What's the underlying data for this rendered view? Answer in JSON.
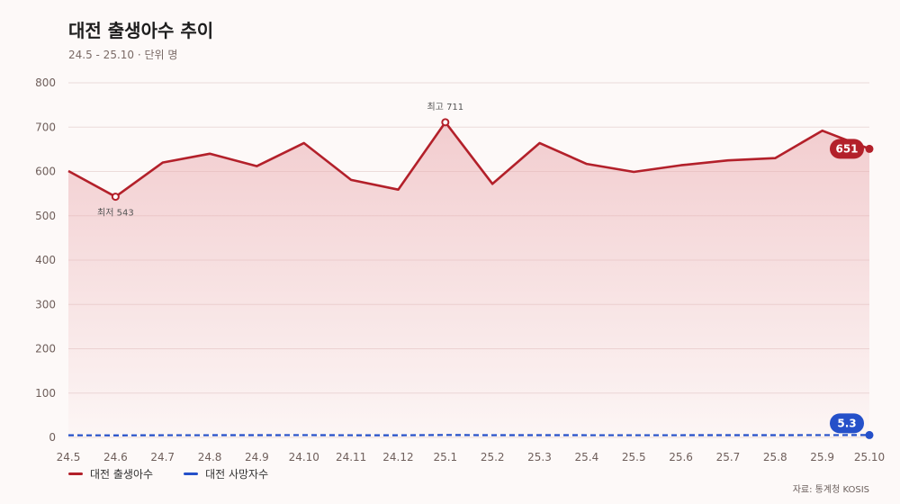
{
  "title": "대전 출생아수 추이",
  "subtitle": "24.5 - 25.10 · 단위 명",
  "source": "자료: 통계청 KOSIS",
  "chart_data": {
    "type": "line",
    "categories": [
      "24.5",
      "24.6",
      "24.7",
      "24.8",
      "24.9",
      "24.10",
      "24.11",
      "24.12",
      "25.1",
      "25.2",
      "25.3",
      "25.4",
      "25.5",
      "25.6",
      "25.7",
      "25.8",
      "25.9",
      "25.10"
    ],
    "ylim": [
      0,
      800
    ],
    "yticks": [
      0,
      100,
      200,
      300,
      400,
      500,
      600,
      700,
      800
    ],
    "grid": true,
    "legend_position": "bottom-left",
    "series": [
      {
        "name": "대전 출생아수",
        "color": "#b3202a",
        "values": [
          601,
          543,
          620,
          640,
          612,
          664,
          581,
          559,
          711,
          572,
          664,
          617,
          599,
          614,
          625,
          630,
          692,
          651
        ],
        "last_label": "651"
      },
      {
        "name": "대전 사망자수",
        "color": "#2550c9",
        "values": [
          4.8,
          4.6,
          4.9,
          5.0,
          5.1,
          5.2,
          4.9,
          4.8,
          5.5,
          5.0,
          5.1,
          5.0,
          4.9,
          5.0,
          5.1,
          5.1,
          5.2,
          5.3
        ],
        "last_label": "5.3"
      }
    ],
    "annotations": [
      {
        "series": 0,
        "index": 8,
        "text": "최고 711",
        "position": "above"
      },
      {
        "series": 0,
        "index": 1,
        "text": "최저 543",
        "position": "below"
      }
    ]
  }
}
